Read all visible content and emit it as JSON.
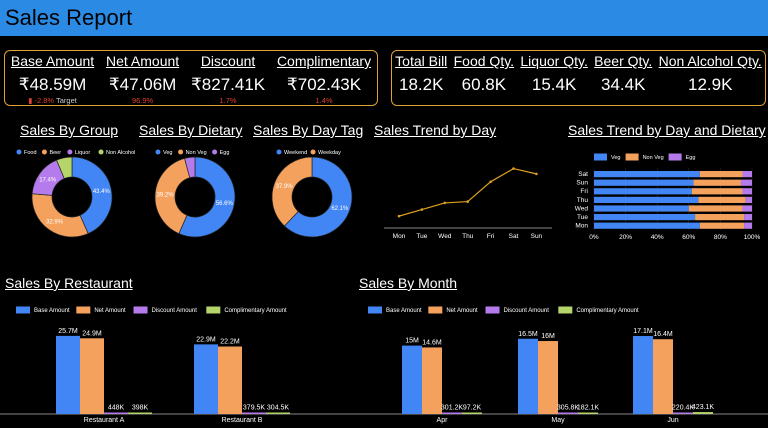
{
  "header": {
    "title": "Sales Report"
  },
  "kpi_left": [
    {
      "label": "Base Amount",
      "value": "₹48.59M",
      "sub": "-2.8%",
      "sub_note": "Target"
    },
    {
      "label": "Net Amount",
      "value": "₹47.06M",
      "sub": "96.9%"
    },
    {
      "label": "Discount",
      "value": "₹827.41K",
      "sub": "1.7%"
    },
    {
      "label": "Complimentary",
      "value": "₹702.43K",
      "sub": "1.4%"
    }
  ],
  "kpi_right": [
    {
      "label": "Total Bill",
      "value": "18.2K"
    },
    {
      "label": "Food Qty.",
      "value": "60.8K"
    },
    {
      "label": "Liquor Qty.",
      "value": "15.4K"
    },
    {
      "label": "Beer Qty.",
      "value": "34.4K"
    },
    {
      "label": "Non Alcohol Qty.",
      "value": "12.9K"
    }
  ],
  "colors": {
    "blue": "#4285f4",
    "orange": "#f4a15d",
    "purple": "#b57bec",
    "green": "#b5d46a",
    "header": "#2a8ae4",
    "kpi_border": "#e0a035",
    "line": "#e0a020"
  },
  "chart_data": [
    {
      "id": "group",
      "type": "pie",
      "title": "Sales By Group",
      "labels": [
        "Food",
        "Beer",
        "Liquor",
        "Non Alcohol"
      ],
      "values": [
        43.4,
        32.9,
        17.4,
        6.3
      ],
      "data_labels": [
        "43.4%",
        "32.9%",
        "17.4%",
        ""
      ],
      "legend": "top"
    },
    {
      "id": "dietary",
      "type": "pie",
      "title": "Sales By Dietary",
      "labels": [
        "Veg",
        "Non Veg",
        "Egg"
      ],
      "values": [
        56.6,
        39.2,
        4.2
      ],
      "data_labels": [
        "56.6%",
        "39.2%",
        ""
      ],
      "legend": "top"
    },
    {
      "id": "daytag",
      "type": "pie",
      "title": "Sales By Day Tag",
      "labels": [
        "Weekend",
        "Weekday"
      ],
      "values": [
        62.1,
        37.9
      ],
      "data_labels": [
        "62.1%",
        "37.9%"
      ],
      "legend": "top"
    },
    {
      "id": "trend",
      "type": "line",
      "title": "Sales Trend by Day",
      "categories": [
        "Mon",
        "Tue",
        "Wed",
        "Thu",
        "Fri",
        "Sat",
        "Sun"
      ],
      "values": [
        2.9,
        3.4,
        3.9,
        4.0,
        5.5,
        6.5,
        6.1
      ],
      "grid": false
    },
    {
      "id": "trend_dietary",
      "type": "bar",
      "orientation": "horizontal",
      "stacked": "percent",
      "title": "Sales Trend by Day and Dietary",
      "categories": [
        "Sat",
        "Sun",
        "Fri",
        "Thu",
        "Wed",
        "Tue",
        "Mon"
      ],
      "series": [
        {
          "name": "Veg",
          "values": [
            67,
            63,
            62,
            66,
            60,
            64,
            67
          ]
        },
        {
          "name": "Non Veg",
          "values": [
            27,
            30,
            32,
            30,
            34,
            31,
            28
          ]
        },
        {
          "name": "Egg",
          "values": [
            6,
            7,
            6,
            4,
            6,
            5,
            5
          ]
        }
      ],
      "xticks": [
        "0%",
        "20%",
        "40%",
        "60%",
        "80%",
        "100%"
      ],
      "legend": "top"
    },
    {
      "id": "restaurant",
      "type": "bar",
      "title": "Sales By Restaurant",
      "categories": [
        "Restaurant A",
        "Restaurant B"
      ],
      "series": [
        {
          "name": "Base Amount",
          "values": [
            25.7,
            22.9
          ],
          "labels": [
            "25.7M",
            "22.9M"
          ]
        },
        {
          "name": "Net Amount",
          "values": [
            24.9,
            22.2
          ],
          "labels": [
            "24.9M",
            "22.2M"
          ]
        },
        {
          "name": "Discount Amount",
          "values": [
            0.448,
            0.3795
          ],
          "labels": [
            "448K",
            "379.5K"
          ]
        },
        {
          "name": "Complimentary Amount",
          "values": [
            0.398,
            0.3045
          ],
          "labels": [
            "398K",
            "304.5K"
          ]
        }
      ],
      "unit": "M",
      "legend": "top"
    },
    {
      "id": "month",
      "type": "bar",
      "title": "Sales By Month",
      "categories": [
        "Apr",
        "May",
        "Jun"
      ],
      "series": [
        {
          "name": "Base Amount",
          "values": [
            15,
            16.5,
            17.1
          ],
          "labels": [
            "15M",
            "16.5M",
            "17.1M"
          ]
        },
        {
          "name": "Net Amount",
          "values": [
            14.6,
            16,
            16.4
          ],
          "labels": [
            "14.6M",
            "16M",
            "16.4M"
          ]
        },
        {
          "name": "Discount Amount",
          "values": [
            0.3012,
            0.3058,
            0.2204
          ],
          "labels": [
            "301.2K",
            "305.8K",
            "220.4K"
          ]
        },
        {
          "name": "Complimentary Amount",
          "values": [
            0.0972,
            0.1821,
            0.4231
          ],
          "labels": [
            "97.2K",
            "182.1K",
            "423.1K"
          ]
        }
      ],
      "unit": "M",
      "legend": "top"
    }
  ]
}
